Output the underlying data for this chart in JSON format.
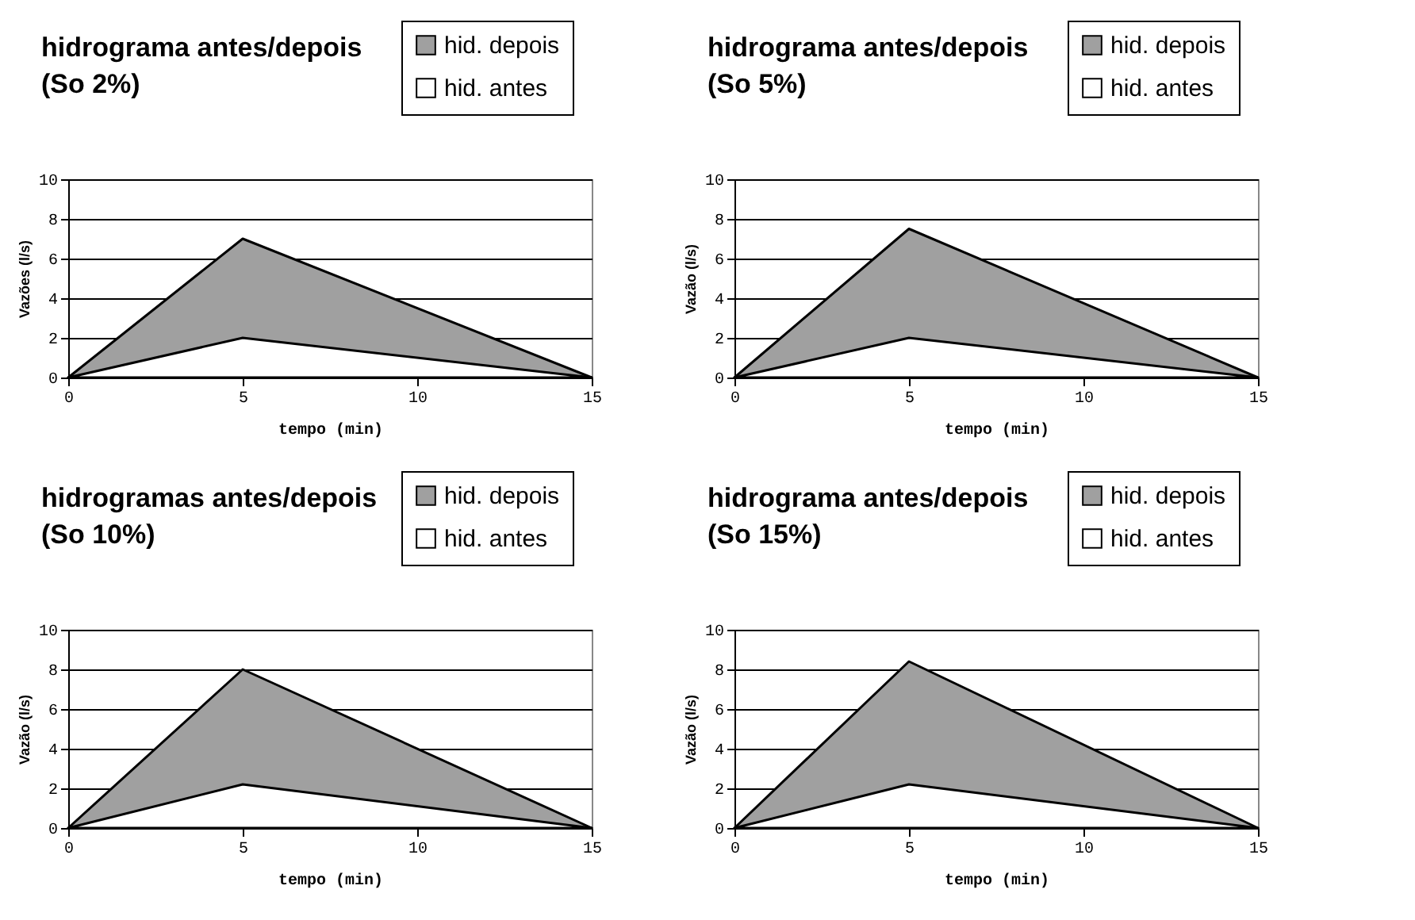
{
  "chart_data": [
    {
      "type": "area",
      "title": "hidrograma antes/depois",
      "subtitle": "(So 2%)",
      "xlabel": "tempo (min)",
      "ylabel": "Vazões (l/s)",
      "x": [
        0,
        5,
        15
      ],
      "xlim": [
        0,
        15
      ],
      "xticks": [
        0,
        5,
        10,
        15
      ],
      "ylim": [
        0,
        10
      ],
      "yticks": [
        0,
        2,
        4,
        6,
        8,
        10
      ],
      "grid": "y",
      "legend": "top right",
      "series": [
        {
          "name": "hid. depois",
          "color": "#a0a0a0",
          "values": [
            0,
            7,
            0
          ]
        },
        {
          "name": "hid. antes",
          "color": "#ffffff",
          "values": [
            0,
            2,
            0
          ]
        }
      ]
    },
    {
      "type": "area",
      "title": "hidrograma antes/depois",
      "subtitle": "(So 5%)",
      "xlabel": "tempo (min)",
      "ylabel": "Vazão (l/s)",
      "x": [
        0,
        5,
        15
      ],
      "xlim": [
        0,
        15
      ],
      "xticks": [
        0,
        5,
        10,
        15
      ],
      "ylim": [
        0,
        10
      ],
      "yticks": [
        0,
        2,
        4,
        6,
        8,
        10
      ],
      "grid": "y",
      "legend": "top right",
      "series": [
        {
          "name": "hid. depois",
          "color": "#a0a0a0",
          "values": [
            0,
            7.5,
            0
          ]
        },
        {
          "name": "hid. antes",
          "color": "#ffffff",
          "values": [
            0,
            2,
            0
          ]
        }
      ]
    },
    {
      "type": "area",
      "title": "hidrogramas antes/depois",
      "subtitle": "(So 10%)",
      "xlabel": "tempo (min)",
      "ylabel": "Vazão (l/s)",
      "x": [
        0,
        5,
        15
      ],
      "xlim": [
        0,
        15
      ],
      "xticks": [
        0,
        5,
        10,
        15
      ],
      "ylim": [
        0,
        10
      ],
      "yticks": [
        0,
        2,
        4,
        6,
        8,
        10
      ],
      "grid": "y",
      "legend": "top right",
      "series": [
        {
          "name": "hid. depois",
          "color": "#a0a0a0",
          "values": [
            0,
            8,
            0
          ]
        },
        {
          "name": "hid. antes",
          "color": "#ffffff",
          "values": [
            0,
            2.2,
            0
          ]
        }
      ]
    },
    {
      "type": "area",
      "title": "hidrograma antes/depois",
      "subtitle": "(So 15%)",
      "xlabel": "tempo (min)",
      "ylabel": "Vazão (l/s)",
      "x": [
        0,
        5,
        15
      ],
      "xlim": [
        0,
        15
      ],
      "xticks": [
        0,
        5,
        10,
        15
      ],
      "ylim": [
        0,
        10
      ],
      "yticks": [
        0,
        2,
        4,
        6,
        8,
        10
      ],
      "grid": "y",
      "legend": "top right",
      "series": [
        {
          "name": "hid. depois",
          "color": "#a0a0a0",
          "values": [
            0,
            8.4,
            0
          ]
        },
        {
          "name": "hid. antes",
          "color": "#ffffff",
          "values": [
            0,
            2.2,
            0
          ]
        }
      ]
    }
  ]
}
